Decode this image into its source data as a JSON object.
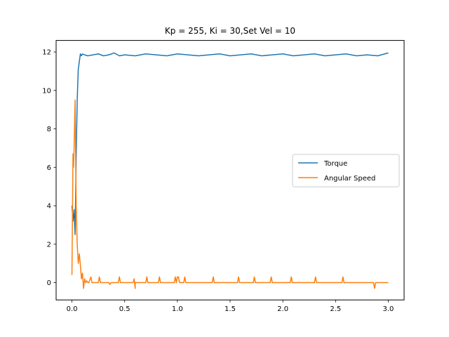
{
  "chart_data": {
    "type": "line",
    "title": "Kp = 255, Ki = 30,Set Vel = 10",
    "xlabel": "",
    "ylabel": "",
    "xlim": [
      -0.15,
      3.15
    ],
    "ylim": [
      -0.9,
      12.6
    ],
    "xticks": [
      0.0,
      0.5,
      1.0,
      1.5,
      2.0,
      2.5,
      3.0
    ],
    "xtick_labels": [
      "0.0",
      "0.5",
      "1.0",
      "1.5",
      "2.0",
      "2.5",
      "3.0"
    ],
    "yticks": [
      0,
      2,
      4,
      6,
      8,
      10,
      12
    ],
    "ytick_labels": [
      "0",
      "2",
      "4",
      "6",
      "8",
      "10",
      "12"
    ],
    "grid": false,
    "legend_position": "center-right",
    "series": [
      {
        "name": "Torque",
        "color": "#1f77b4",
        "x": [
          0.0,
          0.01,
          0.02,
          0.03,
          0.04,
          0.05,
          0.06,
          0.07,
          0.08,
          0.09,
          0.1,
          0.12,
          0.15,
          0.2,
          0.25,
          0.3,
          0.35,
          0.4,
          0.45,
          0.5,
          0.6,
          0.7,
          0.8,
          0.9,
          1.0,
          1.1,
          1.2,
          1.3,
          1.4,
          1.5,
          1.6,
          1.7,
          1.8,
          1.9,
          2.0,
          2.1,
          2.2,
          2.3,
          2.4,
          2.5,
          2.6,
          2.7,
          2.8,
          2.9,
          3.0
        ],
        "y": [
          4.0,
          3.2,
          3.8,
          2.5,
          6.5,
          9.5,
          11.1,
          11.5,
          11.9,
          11.8,
          11.9,
          11.85,
          11.8,
          11.85,
          11.9,
          11.8,
          11.85,
          11.95,
          11.8,
          11.85,
          11.8,
          11.9,
          11.85,
          11.8,
          11.9,
          11.85,
          11.8,
          11.85,
          11.9,
          11.8,
          11.85,
          11.9,
          11.8,
          11.85,
          11.9,
          11.8,
          11.85,
          11.9,
          11.8,
          11.85,
          11.9,
          11.8,
          11.85,
          11.8,
          11.95
        ]
      },
      {
        "name": "Angular Speed",
        "color": "#ff7f0e",
        "x": [
          0.0,
          0.01,
          0.015,
          0.02,
          0.03,
          0.04,
          0.05,
          0.06,
          0.07,
          0.08,
          0.09,
          0.1,
          0.11,
          0.12,
          0.13,
          0.14,
          0.15,
          0.16,
          0.18,
          0.19,
          0.2,
          0.25,
          0.26,
          0.27,
          0.35,
          0.36,
          0.37,
          0.44,
          0.45,
          0.46,
          0.58,
          0.59,
          0.6,
          0.6,
          0.7,
          0.71,
          0.72,
          0.82,
          0.83,
          0.84,
          0.97,
          0.98,
          0.99,
          1.0,
          1.01,
          1.02,
          1.06,
          1.07,
          1.08,
          1.33,
          1.34,
          1.35,
          1.57,
          1.58,
          1.59,
          1.72,
          1.73,
          1.74,
          1.88,
          1.89,
          1.9,
          2.07,
          2.08,
          2.09,
          2.3,
          2.31,
          2.32,
          2.56,
          2.57,
          2.58,
          2.86,
          2.87,
          2.88,
          3.0
        ],
        "y": [
          0.4,
          6.7,
          6.0,
          6.9,
          9.5,
          4.0,
          2.0,
          1.0,
          1.5,
          0.9,
          0.2,
          0.5,
          -0.3,
          0.2,
          0.0,
          0.1,
          0.0,
          0.0,
          0.3,
          0.0,
          0.0,
          0.0,
          0.3,
          0.0,
          0.0,
          -0.1,
          0.0,
          0.0,
          0.3,
          0.0,
          0.0,
          0.2,
          -0.3,
          0.0,
          0.0,
          0.3,
          0.0,
          0.0,
          0.3,
          0.0,
          0.0,
          0.3,
          0.0,
          0.3,
          0.3,
          0.0,
          0.0,
          0.3,
          0.0,
          0.0,
          0.3,
          0.0,
          0.0,
          0.3,
          0.0,
          0.0,
          0.3,
          0.0,
          0.0,
          0.3,
          0.0,
          0.0,
          0.3,
          0.0,
          0.0,
          0.3,
          0.0,
          0.0,
          0.3,
          0.0,
          0.0,
          -0.3,
          0.0,
          0.0
        ]
      }
    ]
  }
}
